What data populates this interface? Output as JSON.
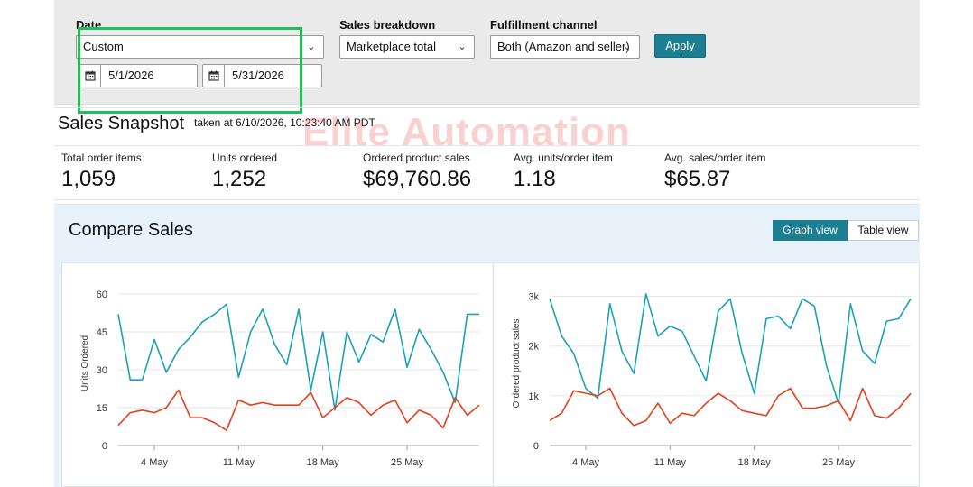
{
  "filters": {
    "date_label": "Date",
    "date_value": "Custom",
    "start_date": "5/1/2026",
    "end_date": "5/31/2026",
    "breakdown_label": "Sales breakdown",
    "breakdown_value": "Marketplace total",
    "channel_label": "Fulfillment channel",
    "channel_value": "Both (Amazon and seller)",
    "apply_label": "Apply"
  },
  "snapshot": {
    "title": "Sales Snapshot",
    "timestamp": "taken at 6/10/2026, 10:23:40 AM PDT",
    "watermark": "Elite Automation",
    "metrics": [
      {
        "label": "Total order items",
        "value": "1,059"
      },
      {
        "label": "Units ordered",
        "value": "1,252"
      },
      {
        "label": "Ordered product sales",
        "value": "$69,760.86"
      },
      {
        "label": "Avg. units/order item",
        "value": "1.18"
      },
      {
        "label": "Avg. sales/order item",
        "value": "$65.87"
      }
    ]
  },
  "compare": {
    "title": "Compare Sales",
    "graph_view_label": "Graph view",
    "table_view_label": "Table view"
  },
  "colors": {
    "teal": "#1ba2b4",
    "red": "#e0411e",
    "accent": "#1b7f91"
  },
  "chart_data": [
    {
      "type": "line",
      "ylabel": "Units Ordered",
      "ylim": [
        0,
        65
      ],
      "yticks": [
        0,
        15,
        30,
        45,
        60
      ],
      "x": [
        1,
        2,
        3,
        4,
        5,
        6,
        7,
        8,
        9,
        10,
        11,
        12,
        13,
        14,
        15,
        16,
        17,
        18,
        19,
        20,
        21,
        22,
        23,
        24,
        25,
        26,
        27,
        28,
        29,
        30,
        31
      ],
      "xticks": [
        {
          "x": 4,
          "label": "4 May"
        },
        {
          "x": 11,
          "label": "11 May"
        },
        {
          "x": 18,
          "label": "18 May"
        },
        {
          "x": 25,
          "label": "25 May"
        }
      ],
      "series": [
        {
          "values": [
            52,
            26,
            26,
            42,
            29,
            38,
            43,
            49,
            52,
            56,
            27,
            45,
            54,
            40,
            32,
            54,
            22,
            45,
            14,
            45,
            33,
            44,
            41,
            54,
            31,
            46,
            38,
            29,
            17,
            52,
            52
          ]
        },
        {
          "values": [
            8,
            13,
            14,
            13,
            15,
            22,
            11,
            11,
            9,
            6,
            18,
            16,
            17,
            16,
            16,
            16,
            21,
            11,
            15,
            19,
            17,
            12,
            16,
            18,
            9,
            14,
            12,
            7,
            19,
            12,
            16
          ]
        }
      ]
    },
    {
      "type": "line",
      "ylabel": "Ordered product sales",
      "ylim": [
        0,
        3300
      ],
      "yticks": [
        {
          "v": 0,
          "label": "0"
        },
        {
          "v": 1000,
          "label": "1k"
        },
        {
          "v": 2000,
          "label": "2k"
        },
        {
          "v": 3000,
          "label": "3k"
        }
      ],
      "x": [
        1,
        2,
        3,
        4,
        5,
        6,
        7,
        8,
        9,
        10,
        11,
        12,
        13,
        14,
        15,
        16,
        17,
        18,
        19,
        20,
        21,
        22,
        23,
        24,
        25,
        26,
        27,
        28,
        29,
        30,
        31
      ],
      "xticks": [
        {
          "x": 4,
          "label": "4 May"
        },
        {
          "x": 11,
          "label": "11 May"
        },
        {
          "x": 18,
          "label": "18 May"
        },
        {
          "x": 25,
          "label": "25 May"
        }
      ],
      "series": [
        {
          "values": [
            2950,
            2200,
            1850,
            1150,
            950,
            2850,
            1900,
            1450,
            3050,
            2200,
            2400,
            2300,
            1800,
            1300,
            2700,
            2950,
            1850,
            1050,
            2550,
            2600,
            2350,
            2950,
            2800,
            1600,
            850,
            2850,
            1900,
            1650,
            2500,
            2550,
            2950
          ]
        },
        {
          "values": [
            500,
            650,
            1100,
            1050,
            1000,
            1150,
            650,
            400,
            500,
            850,
            450,
            650,
            600,
            850,
            1050,
            900,
            700,
            650,
            600,
            1000,
            1150,
            750,
            750,
            800,
            900,
            500,
            1150,
            600,
            550,
            750,
            1050
          ]
        }
      ]
    }
  ]
}
